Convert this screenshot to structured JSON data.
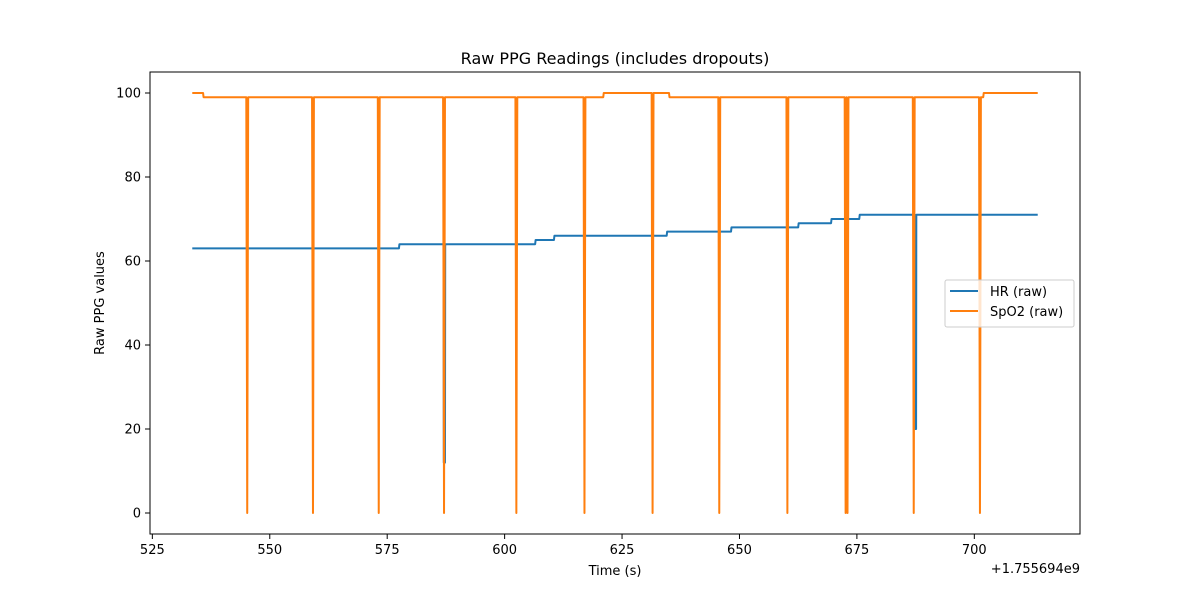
{
  "chart_data": {
    "type": "line",
    "title": "Raw PPG Readings (includes dropouts)",
    "xlabel": "Time (s)",
    "ylabel": "Raw PPG values",
    "x_offset_label": "+1.755694e9",
    "xlim": [
      524.5,
      722.5
    ],
    "ylim": [
      -5,
      105
    ],
    "xticks": [
      525,
      550,
      575,
      600,
      625,
      650,
      675,
      700
    ],
    "yticks": [
      0,
      20,
      40,
      60,
      80,
      100
    ],
    "grid": false,
    "legend_position": "center-right",
    "series": [
      {
        "name": "HR (raw)",
        "color": "#1f77b4",
        "x": [
          533.5,
          577.5,
          577.6,
          587.0,
          587.05,
          587.3,
          587.35,
          606.5,
          606.6,
          610.5,
          610.6,
          634.5,
          634.6,
          648.2,
          648.3,
          662.5,
          662.6,
          663.0,
          663.1,
          669.5,
          669.6,
          675.5,
          675.6,
          687.3,
          687.35,
          687.6,
          687.65,
          713.5
        ],
        "values": [
          63,
          63,
          64,
          64,
          12,
          12,
          64,
          64,
          65,
          65,
          66,
          66,
          67,
          67,
          68,
          68,
          69,
          69,
          69,
          69,
          70,
          70,
          71,
          71,
          20,
          20,
          71,
          71
        ]
      },
      {
        "name": "SpO2 (raw)",
        "color": "#ff7f0e",
        "x": [
          533.5,
          535.8,
          535.9,
          545.0,
          545.2,
          545.4,
          559.0,
          559.2,
          559.4,
          573.0,
          573.2,
          573.4,
          586.9,
          587.1,
          587.3,
          602.3,
          602.5,
          602.7,
          616.8,
          617.0,
          617.2,
          620.5,
          620.6,
          621.0,
          621.1,
          631.3,
          631.5,
          631.7,
          635.0,
          635.1,
          645.5,
          645.7,
          645.9,
          660.0,
          660.2,
          660.4,
          672.4,
          672.6,
          672.8,
          673.0,
          673.2,
          673.4,
          686.9,
          687.1,
          687.3,
          701.0,
          701.2,
          701.4,
          701.9,
          702.0,
          713.5
        ],
        "values": [
          100,
          100,
          99,
          99,
          0,
          99,
          99,
          0,
          99,
          99,
          0,
          99,
          99,
          0,
          99,
          99,
          0,
          99,
          99,
          0,
          99,
          99,
          99,
          99,
          100,
          100,
          0,
          100,
          100,
          99,
          99,
          0,
          99,
          99,
          0,
          99,
          99,
          0,
          99,
          0,
          99,
          99,
          99,
          0,
          99,
          99,
          0,
          99,
          99,
          100,
          100
        ]
      }
    ]
  }
}
